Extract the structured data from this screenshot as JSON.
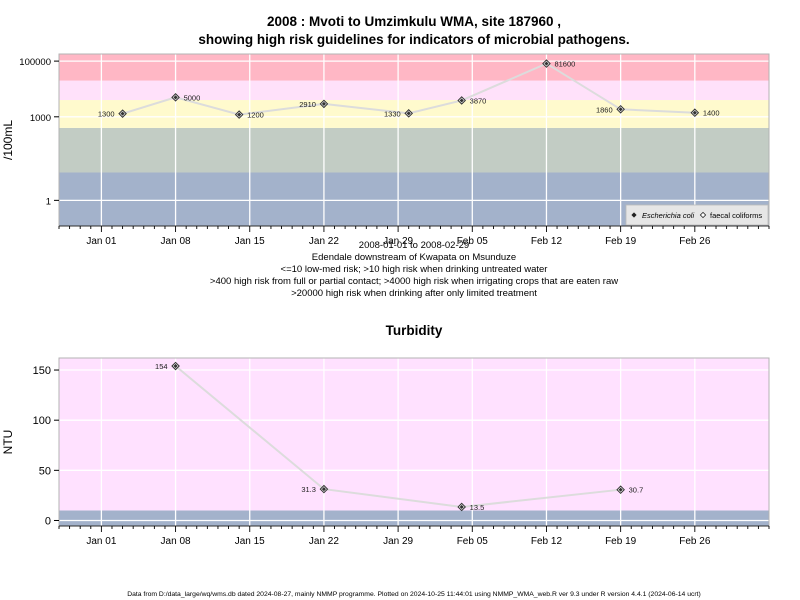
{
  "chart1_title_line1": "2008 : Mvoti to Umzimkulu WMA, site 187960 ,",
  "chart1_title_line2": "showing high risk guidelines for indicators of microbial pathogens.",
  "chart2_title": "Turbidity",
  "chart1_info": [
    "2008-01-01 to 2008-02-29",
    "Edendale downstream of Kwapata on Msunduze",
    "<=10 low-med risk; >10 high risk when drinking untreated water",
    ">400 high risk from full or partial contact; >4000 high risk when irrigating crops that are eaten raw",
    ">20000 high risk when drinking after only limited treatment"
  ],
  "footer": "Data from D:/data_large/wq/wms.db dated 2024-08-27, mainly NMMP programme. Plotted on 2024-10-25 11:44:01 using NMMP_WMA_web.R ver 9.3 under R version 4.4.1 (2024-06-14 ucrt)",
  "colors": {
    "blue_band": "#a3b2cb",
    "grey_band": "#c2ccc4",
    "yellow_band": "#fffacd",
    "pink_band": "#ffe1fa",
    "red_band": "#ffb7c5",
    "plot2_bg": "#ffe1ff",
    "line": "#dcdcdc",
    "point": "#333333"
  },
  "chart_data": [
    {
      "type": "line",
      "title": "2008 : Mvoti to Umzimkulu WMA, site 187960 , showing high risk guidelines for indicators of microbial pathogens.",
      "ylabel": "/100mL",
      "y_scale": "log10",
      "ylim": [
        0.12,
        180000
      ],
      "yticks": [
        1,
        1000,
        100000
      ],
      "ytick_labels": [
        "1",
        "1000",
        "100000"
      ],
      "x_range": [
        "2007-12-28",
        "2008-03-04"
      ],
      "xticks": [
        "2008-01-01",
        "2008-01-08",
        "2008-01-15",
        "2008-01-22",
        "2008-01-29",
        "2008-02-05",
        "2008-02-12",
        "2008-02-19",
        "2008-02-26"
      ],
      "xtick_labels": [
        "Jan 01",
        "Jan 08",
        "Jan 15",
        "Jan 22",
        "Jan 29",
        "Feb 05",
        "Feb 12",
        "Feb 19",
        "Feb 26"
      ],
      "risk_bands": [
        {
          "from": 0.12,
          "to": 10,
          "color": "blue_band"
        },
        {
          "from": 10,
          "to": 400,
          "color": "grey_band"
        },
        {
          "from": 400,
          "to": 4000,
          "color": "yellow_band"
        },
        {
          "from": 4000,
          "to": 20000,
          "color": "pink_band"
        },
        {
          "from": 20000,
          "to": 180000,
          "color": "red_band"
        }
      ],
      "grid": true,
      "legend_position": "bottom-right",
      "series": [
        {
          "name": "Escherichia coli",
          "marker": "filled-diamond",
          "values": []
        },
        {
          "name": "faecal coliforms",
          "marker": "open-diamond",
          "values": [
            {
              "x": "2008-01-03",
              "y": 1300,
              "label": "1300",
              "label_side": "left"
            },
            {
              "x": "2008-01-08",
              "y": 5000,
              "label": "5000",
              "label_side": "right"
            },
            {
              "x": "2008-01-14",
              "y": 1200,
              "label": "1200",
              "label_side": "right"
            },
            {
              "x": "2008-01-22",
              "y": 2910,
              "label": "2910",
              "label_side": "left"
            },
            {
              "x": "2008-01-30",
              "y": 1330,
              "label": "1330",
              "label_side": "left"
            },
            {
              "x": "2008-02-04",
              "y": 3870,
              "label": "3870",
              "label_side": "right"
            },
            {
              "x": "2008-02-12",
              "y": 81600,
              "label": "81600",
              "label_side": "right"
            },
            {
              "x": "2008-02-19",
              "y": 1860,
              "label": "1860",
              "label_side": "left"
            },
            {
              "x": "2008-02-26",
              "y": 1400,
              "label": "1400",
              "label_side": "right"
            }
          ]
        }
      ]
    },
    {
      "type": "line",
      "title": "Turbidity",
      "ylabel": "NTU",
      "ylim": [
        -5.5,
        162
      ],
      "yticks": [
        0,
        50,
        100,
        150
      ],
      "ytick_labels": [
        "0",
        "50",
        "100",
        "150"
      ],
      "x_range": [
        "2007-12-28",
        "2008-03-04"
      ],
      "xticks": [
        "2008-01-01",
        "2008-01-08",
        "2008-01-15",
        "2008-01-22",
        "2008-01-29",
        "2008-02-05",
        "2008-02-12",
        "2008-02-19",
        "2008-02-26"
      ],
      "xtick_labels": [
        "Jan 01",
        "Jan 08",
        "Jan 15",
        "Jan 22",
        "Jan 29",
        "Feb 05",
        "Feb 12",
        "Feb 19",
        "Feb 26"
      ],
      "risk_bands": [
        {
          "from": -5.5,
          "to": 10,
          "color": "blue_band"
        },
        {
          "from": 10,
          "to": 162,
          "color": "plot2_bg"
        }
      ],
      "grid": true,
      "series": [
        {
          "values": [
            {
              "x": "2008-01-08",
              "y": 154,
              "label": "154",
              "label_side": "left"
            },
            {
              "x": "2008-01-22",
              "y": 31.3,
              "label": "31.3",
              "label_side": "left"
            },
            {
              "x": "2008-02-04",
              "y": 13.5,
              "label": "13.5",
              "label_side": "right"
            },
            {
              "x": "2008-02-19",
              "y": 30.7,
              "label": "30.7",
              "label_side": "right"
            }
          ]
        }
      ]
    }
  ]
}
